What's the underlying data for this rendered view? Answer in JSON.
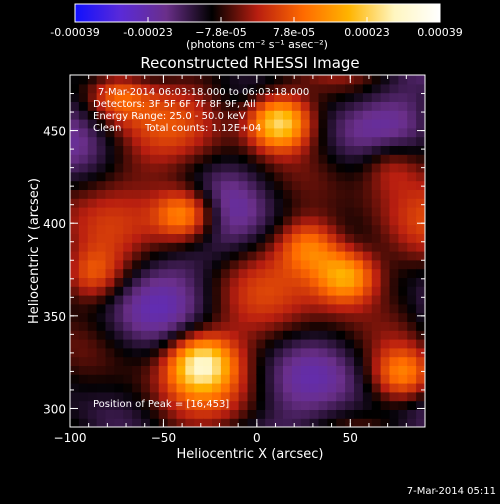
{
  "colorbar": {
    "tick_labels": [
      "-0.00039",
      "-0.00023",
      "−7.8e-05",
      "7.8e-05",
      "0.00023",
      "0.00039"
    ],
    "units_label": "(photons cm⁻² s⁻¹ asec⁻²)",
    "range": [
      -0.00039,
      0.00039
    ],
    "colormap": [
      "#1010ff",
      "#5a2ad8",
      "#6a2f8a",
      "#000000",
      "#b81e10",
      "#ff6a00",
      "#ffb400",
      "#fff6c0",
      "#ffffff"
    ]
  },
  "chart_data": {
    "type": "heatmap",
    "title": "Reconstructed RHESSI Image",
    "xlabel": "Heliocentric X (arcsec)",
    "ylabel": "Heliocentric Y (arcsec)",
    "xlim": [
      -100,
      90
    ],
    "ylim": [
      290,
      480
    ],
    "x_ticks": [
      -100,
      -50,
      0,
      50
    ],
    "x_tick_labels": [
      "−100",
      "−50",
      "0",
      "50"
    ],
    "y_ticks": [
      300,
      350,
      400,
      450
    ],
    "y_tick_labels": [
      "300",
      "350",
      "400",
      "450"
    ],
    "info_lines": [
      "7-Mar-2014 06:03:18.000 to 06:03:18.000",
      "Detectors: 3F 5F 6F 7F 8F 9F, All",
      "Energy Range: 25.0 - 50.0 keV",
      "Clean",
      "Total counts: 1.12E+04"
    ],
    "peak_label": "Position of Peak = [16,453]",
    "peak_position": [
      16,
      453
    ],
    "sources": [
      {
        "x": 12,
        "y": 455,
        "value": 0.00039
      },
      {
        "x": -75,
        "y": 470,
        "value": 0.0002
      },
      {
        "x": -38,
        "y": 405,
        "value": 0.00031
      },
      {
        "x": 48,
        "y": 372,
        "value": 0.0003
      },
      {
        "x": 28,
        "y": 388,
        "value": 0.00022
      },
      {
        "x": -30,
        "y": 325,
        "value": 0.00032
      },
      {
        "x": 78,
        "y": 318,
        "value": 0.00024
      },
      {
        "x": -88,
        "y": 372,
        "value": 0.00018
      },
      {
        "x": 72,
        "y": 432,
        "value": 0.00015
      }
    ]
  },
  "footer": {
    "timestamp": "7-Mar-2014 05:11"
  }
}
